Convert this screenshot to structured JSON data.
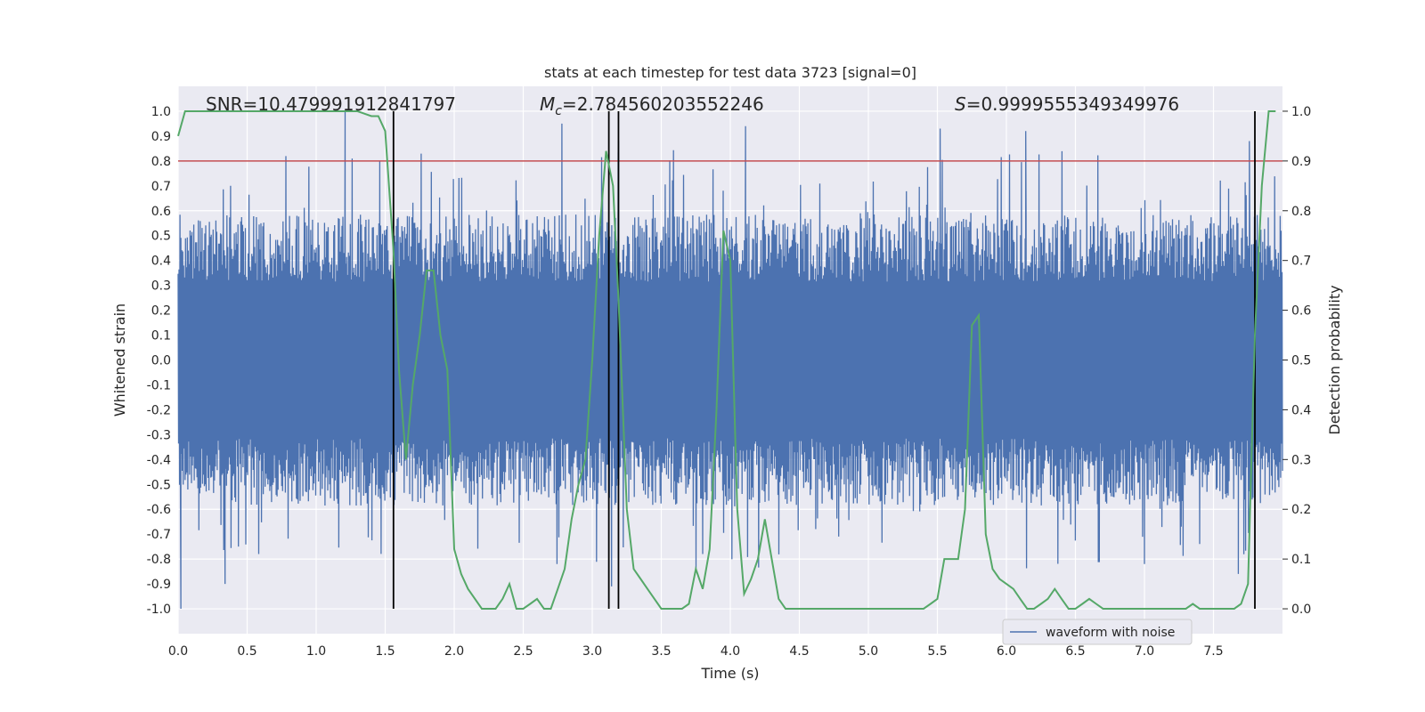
{
  "chart_data": {
    "type": "line",
    "title": "stats at each timestep for test data 3723 [signal=0]",
    "xlabel": "Time (s)",
    "ylabel": "Whitened strain",
    "y2label": "Detection probability",
    "xlim": [
      0.0,
      8.0
    ],
    "ylim": [
      -1.1,
      1.1
    ],
    "y2lim": [
      -0.05,
      1.05
    ],
    "xticks": [
      "0.0",
      "0.5",
      "1.0",
      "1.5",
      "2.0",
      "2.5",
      "3.0",
      "3.5",
      "4.0",
      "4.5",
      "5.0",
      "5.5",
      "6.0",
      "6.5",
      "7.0",
      "7.5"
    ],
    "yticks": [
      "-1.0",
      "-0.9",
      "-0.8",
      "-0.7",
      "-0.6",
      "-0.5",
      "-0.4",
      "-0.3",
      "-0.2",
      "-0.1",
      "0.0",
      "0.1",
      "0.2",
      "0.3",
      "0.4",
      "0.5",
      "0.6",
      "0.7",
      "0.8",
      "0.9",
      "1.0"
    ],
    "y2ticks": [
      "0.0",
      "0.1",
      "0.2",
      "0.3",
      "0.4",
      "0.5",
      "0.6",
      "0.7",
      "0.8",
      "0.9",
      "1.0"
    ],
    "annotations": {
      "snr": "SNR=10.479991912841797",
      "mc_symbol": "M",
      "mc_sub": "c",
      "mc_value": "=2.784560203552246",
      "s_symbol": "S",
      "s_value": "=0.9999555349349976"
    },
    "legend": [
      {
        "label": "waveform with noise",
        "color": "#4c72b0"
      }
    ],
    "legend_position": "lower-right",
    "grid": true,
    "threshold": {
      "y2": 0.9,
      "color": "#c44e52"
    },
    "vlines": [
      1.56,
      3.12,
      3.19,
      7.8
    ],
    "vline_color": "#000000",
    "series": [
      {
        "name": "waveform with noise",
        "axis": "left",
        "color": "#4c72b0",
        "kind": "noise",
        "envelope_typical": 0.45,
        "envelope_spike_max": 1.0,
        "spikes": [
          {
            "x": 1.21,
            "y": 1.0
          },
          {
            "x": 2.78,
            "y": 0.95
          },
          {
            "x": 3.19,
            "y": 0.88
          },
          {
            "x": 4.11,
            "y": 0.94
          },
          {
            "x": 5.52,
            "y": 0.93
          },
          {
            "x": 6.14,
            "y": 0.92
          },
          {
            "x": 7.76,
            "y": 0.88
          },
          {
            "x": 0.02,
            "y": -1.0
          },
          {
            "x": 0.34,
            "y": -0.9
          },
          {
            "x": 3.14,
            "y": -0.91
          },
          {
            "x": 3.8,
            "y": -0.78
          },
          {
            "x": 7.0,
            "y": -0.82
          },
          {
            "x": 7.68,
            "y": -0.86
          }
        ]
      },
      {
        "name": "detection probability",
        "axis": "right",
        "color": "#55a868",
        "x": [
          0.0,
          0.05,
          0.1,
          0.2,
          0.3,
          0.4,
          0.5,
          0.6,
          0.7,
          0.8,
          0.9,
          1.0,
          1.1,
          1.2,
          1.3,
          1.4,
          1.45,
          1.5,
          1.56,
          1.6,
          1.65,
          1.7,
          1.75,
          1.8,
          1.85,
          1.9,
          1.95,
          2.0,
          2.05,
          2.1,
          2.2,
          2.3,
          2.35,
          2.4,
          2.45,
          2.5,
          2.55,
          2.6,
          2.65,
          2.7,
          2.75,
          2.8,
          2.85,
          2.9,
          2.95,
          3.0,
          3.05,
          3.1,
          3.15,
          3.19,
          3.25,
          3.3,
          3.35,
          3.4,
          3.5,
          3.55,
          3.6,
          3.65,
          3.7,
          3.75,
          3.8,
          3.85,
          3.9,
          3.95,
          4.0,
          4.05,
          4.1,
          4.15,
          4.2,
          4.25,
          4.3,
          4.35,
          4.4,
          4.45,
          4.5,
          4.6,
          4.7,
          4.8,
          4.9,
          5.0,
          5.1,
          5.2,
          5.3,
          5.35,
          5.4,
          5.45,
          5.5,
          5.55,
          5.6,
          5.65,
          5.7,
          5.75,
          5.8,
          5.85,
          5.9,
          5.95,
          6.0,
          6.05,
          6.1,
          6.15,
          6.2,
          6.25,
          6.3,
          6.35,
          6.4,
          6.45,
          6.5,
          6.55,
          6.6,
          6.65,
          6.7,
          6.8,
          6.9,
          7.0,
          7.1,
          7.2,
          7.3,
          7.35,
          7.4,
          7.45,
          7.5,
          7.55,
          7.6,
          7.65,
          7.7,
          7.75,
          7.8,
          7.85,
          7.9,
          7.95
        ],
        "y": [
          0.95,
          1.0,
          1.0,
          1.0,
          1.0,
          1.0,
          1.0,
          1.0,
          1.0,
          1.0,
          1.0,
          1.0,
          1.0,
          1.0,
          1.0,
          0.99,
          0.99,
          0.96,
          0.72,
          0.48,
          0.3,
          0.45,
          0.55,
          0.68,
          0.68,
          0.55,
          0.48,
          0.12,
          0.07,
          0.04,
          0.0,
          0.0,
          0.02,
          0.05,
          0.0,
          0.0,
          0.01,
          0.02,
          0.0,
          0.0,
          0.04,
          0.08,
          0.18,
          0.25,
          0.3,
          0.5,
          0.75,
          0.92,
          0.85,
          0.62,
          0.2,
          0.08,
          0.06,
          0.04,
          0.0,
          0.0,
          0.0,
          0.0,
          0.01,
          0.08,
          0.04,
          0.12,
          0.4,
          0.76,
          0.7,
          0.2,
          0.03,
          0.06,
          0.1,
          0.18,
          0.1,
          0.02,
          0.0,
          0.0,
          0.0,
          0.0,
          0.0,
          0.0,
          0.0,
          0.0,
          0.0,
          0.0,
          0.0,
          0.0,
          0.0,
          0.01,
          0.02,
          0.1,
          0.1,
          0.1,
          0.2,
          0.57,
          0.59,
          0.15,
          0.08,
          0.06,
          0.05,
          0.04,
          0.02,
          0.0,
          0.0,
          0.01,
          0.02,
          0.04,
          0.02,
          0.0,
          0.0,
          0.01,
          0.02,
          0.01,
          0.0,
          0.0,
          0.0,
          0.0,
          0.0,
          0.0,
          0.0,
          0.01,
          0.0,
          0.0,
          0.0,
          0.0,
          0.0,
          0.0,
          0.01,
          0.05,
          0.55,
          0.85,
          1.0,
          1.0
        ]
      }
    ]
  }
}
